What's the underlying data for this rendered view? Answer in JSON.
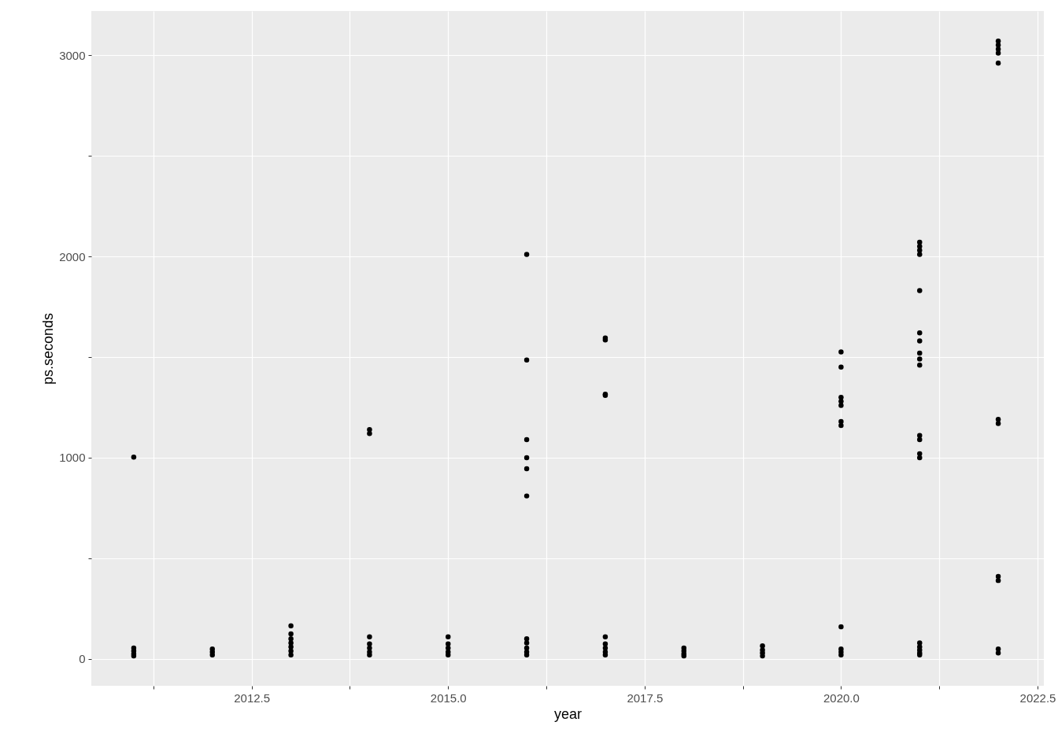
{
  "chart_data": {
    "type": "scatter",
    "xlabel": "year",
    "ylabel": "ps.seconds",
    "xlim": [
      2010.46,
      2022.58
    ],
    "ylim": [
      -133,
      3219
    ],
    "xticks": [
      {
        "value": 2011.25,
        "label": null
      },
      {
        "value": 2012.5,
        "label": "2012.5"
      },
      {
        "value": 2013.75,
        "label": null
      },
      {
        "value": 2015,
        "label": "2015.0"
      },
      {
        "value": 2016.25,
        "label": null
      },
      {
        "value": 2017.5,
        "label": "2017.5"
      },
      {
        "value": 2018.75,
        "label": null
      },
      {
        "value": 2020,
        "label": "2020.0"
      },
      {
        "value": 2021.25,
        "label": null
      },
      {
        "value": 2022.5,
        "label": "2022.5"
      }
    ],
    "yticks": [
      0,
      {
        "value": 500,
        "label": null
      },
      1000,
      {
        "value": 1500,
        "label": null
      },
      2000,
      {
        "value": 2500,
        "label": null
      },
      3000
    ],
    "grid": true,
    "marker": "circle",
    "series": [
      {
        "color": "#000000",
        "x": [
          2011,
          2011,
          2011,
          2011,
          2011,
          2012,
          2012,
          2012,
          2013,
          2013,
          2013,
          2013,
          2013,
          2013,
          2013,
          2014,
          2014,
          2014,
          2014,
          2014,
          2014,
          2014,
          2015,
          2015,
          2015,
          2015,
          2015,
          2016,
          2016,
          2016,
          2016,
          2016,
          2016,
          2016,
          2016,
          2016,
          2016,
          2016,
          2017,
          2017,
          2017,
          2017,
          2017,
          2017,
          2017,
          2017,
          2017,
          2018,
          2018,
          2018,
          2018,
          2019,
          2019,
          2019,
          2019,
          2020,
          2020,
          2020,
          2020,
          2020,
          2020,
          2020,
          2020,
          2020,
          2020,
          2020,
          2021,
          2021,
          2021,
          2021,
          2021,
          2021,
          2021,
          2021,
          2021,
          2021,
          2021,
          2021,
          2021,
          2021,
          2021,
          2021,
          2021,
          2021,
          2021,
          2022,
          2022,
          2022,
          2022,
          2022,
          2022,
          2022,
          2022,
          2022,
          2022,
          2022
        ],
        "values": [
          1003,
          55,
          40,
          25,
          15,
          50,
          35,
          20,
          165,
          125,
          100,
          80,
          60,
          40,
          20,
          1140,
          1120,
          110,
          75,
          55,
          35,
          20,
          110,
          75,
          55,
          35,
          20,
          2010,
          1485,
          1090,
          1000,
          945,
          810,
          100,
          80,
          55,
          35,
          20,
          1595,
          1585,
          1315,
          1310,
          110,
          75,
          55,
          35,
          20,
          55,
          40,
          25,
          15,
          65,
          45,
          30,
          15,
          1525,
          1450,
          1300,
          1280,
          1260,
          1180,
          1160,
          160,
          50,
          35,
          20,
          2070,
          2050,
          2030,
          2010,
          1830,
          1620,
          1580,
          1520,
          1490,
          1460,
          1110,
          1090,
          1020,
          1000,
          80,
          60,
          45,
          30,
          20,
          3070,
          3050,
          3030,
          3010,
          2960,
          1190,
          1170,
          410,
          390,
          50,
          30
        ]
      }
    ]
  }
}
